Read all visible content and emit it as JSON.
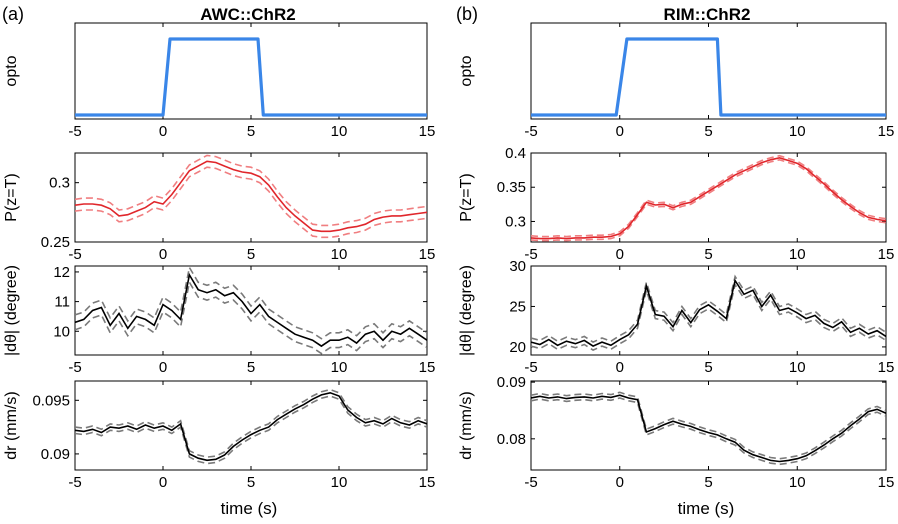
{
  "figure": {
    "panel_a_letter": "(a)",
    "panel_b_letter": "(b)",
    "panel_a_title": "AWC::ChR2",
    "panel_b_title": "RIM::ChR2",
    "xlabel": "time (s)"
  },
  "colors": {
    "opto": "#3a86e8",
    "ptz_mean": "#e0262b",
    "ptz_err": "#f07e80",
    "mean_black": "#000000",
    "err_gray": "#7a7a7a"
  },
  "chart_data": [
    {
      "id": "a-opto",
      "type": "line",
      "ylabel": "opto",
      "xlim": [
        -5,
        15
      ],
      "xticks": [
        -5,
        0,
        5,
        10,
        15
      ],
      "ylim": [
        0,
        1.2
      ],
      "yticks": [],
      "series": [
        {
          "x": [
            -5,
            0,
            0.4,
            5.4,
            5.7,
            15
          ],
          "y": [
            0.05,
            0.05,
            1.0,
            1.0,
            0.05,
            0.05
          ]
        }
      ]
    },
    {
      "id": "a-ptz",
      "type": "line",
      "ylabel": "P(z=T)",
      "xlim": [
        -5,
        15
      ],
      "xticks": [
        -5,
        0,
        5,
        10,
        15
      ],
      "ylim": [
        0.25,
        0.325
      ],
      "yticks": [
        0.25,
        0.3
      ],
      "ytick_labels": [
        "0.25",
        "0.3"
      ],
      "x": [
        -5,
        -4.5,
        -4,
        -3.5,
        -3,
        -2.5,
        -2,
        -1.5,
        -1,
        -0.5,
        0,
        0.5,
        1,
        1.5,
        2,
        2.5,
        3,
        3.5,
        4,
        4.5,
        5,
        5.5,
        6,
        6.5,
        7,
        7.5,
        8,
        8.5,
        9,
        9.5,
        10,
        10.5,
        11,
        11.5,
        12,
        12.5,
        13,
        13.5,
        14,
        14.5,
        15
      ],
      "mean": [
        0.281,
        0.282,
        0.282,
        0.281,
        0.278,
        0.272,
        0.273,
        0.276,
        0.279,
        0.284,
        0.282,
        0.29,
        0.3,
        0.31,
        0.314,
        0.318,
        0.317,
        0.314,
        0.311,
        0.309,
        0.308,
        0.305,
        0.298,
        0.288,
        0.279,
        0.272,
        0.266,
        0.26,
        0.259,
        0.259,
        0.26,
        0.262,
        0.263,
        0.265,
        0.269,
        0.271,
        0.272,
        0.272,
        0.273,
        0.274,
        0.275
      ],
      "err": 0.005
    },
    {
      "id": "a-dtheta",
      "type": "line",
      "ylabel": "|dθ| (degree)",
      "xlim": [
        -5,
        15
      ],
      "xticks": [
        -5,
        0,
        5,
        10,
        15
      ],
      "ylim": [
        9.2,
        12.2
      ],
      "yticks": [
        10,
        11,
        12
      ],
      "ytick_labels": [
        "10",
        "11",
        "12"
      ],
      "x": [
        -5,
        -4.5,
        -4,
        -3.5,
        -3,
        -2.5,
        -2,
        -1.5,
        -1,
        -0.5,
        0,
        0.5,
        1,
        1.5,
        2,
        2.5,
        3,
        3.5,
        4,
        4.5,
        5,
        5.5,
        6,
        6.5,
        7,
        7.5,
        8,
        8.5,
        9,
        9.5,
        10,
        10.5,
        11,
        11.5,
        12,
        12.5,
        13,
        13.5,
        14,
        14.5,
        15
      ],
      "mean": [
        10.3,
        10.4,
        10.7,
        10.8,
        10.2,
        10.6,
        10.1,
        10.5,
        10.4,
        10.2,
        10.9,
        10.7,
        10.4,
        11.9,
        11.4,
        11.3,
        11.4,
        11.2,
        11.3,
        11.0,
        10.6,
        10.9,
        10.5,
        10.3,
        10.1,
        9.9,
        9.8,
        9.7,
        9.5,
        9.7,
        9.7,
        9.8,
        9.6,
        9.9,
        10.0,
        9.7,
        10.0,
        9.9,
        10.1,
        9.9,
        9.7
      ],
      "err": 0.25
    },
    {
      "id": "a-dr",
      "type": "line",
      "ylabel": "dr (mm/s)",
      "xlim": [
        -5,
        15
      ],
      "xticks": [
        -5,
        0,
        5,
        10,
        15
      ],
      "xtick_labels": [
        "-5",
        "0",
        "5",
        "10",
        "15"
      ],
      "ylim": [
        0.0885,
        0.0968
      ],
      "yticks": [
        0.09,
        0.095
      ],
      "ytick_labels": [
        "0.09",
        "0.095"
      ],
      "x": [
        -5,
        -4.5,
        -4,
        -3.5,
        -3,
        -2.5,
        -2,
        -1.5,
        -1,
        -0.5,
        0,
        0.5,
        1,
        1.5,
        2,
        2.5,
        3,
        3.5,
        4,
        4.5,
        5,
        5.5,
        6,
        6.5,
        7,
        7.5,
        8,
        8.5,
        9,
        9.5,
        10,
        10.5,
        11,
        11.5,
        12,
        12.5,
        13,
        13.5,
        14,
        14.5,
        15
      ],
      "mean": [
        0.0922,
        0.0921,
        0.0923,
        0.092,
        0.0925,
        0.0924,
        0.0926,
        0.0923,
        0.0927,
        0.0924,
        0.0926,
        0.0922,
        0.0928,
        0.09,
        0.0896,
        0.0894,
        0.0895,
        0.0899,
        0.0907,
        0.0913,
        0.0918,
        0.0922,
        0.0925,
        0.0932,
        0.0937,
        0.0942,
        0.0946,
        0.0951,
        0.0955,
        0.0957,
        0.0954,
        0.0941,
        0.0934,
        0.0929,
        0.0931,
        0.0928,
        0.0933,
        0.0929,
        0.0927,
        0.0931,
        0.0928
      ],
      "err": 0.0003
    },
    {
      "id": "b-opto",
      "type": "line",
      "ylabel": "opto",
      "xlim": [
        -5,
        15
      ],
      "xticks": [
        -5,
        0,
        5,
        10,
        15
      ],
      "ylim": [
        0,
        1.2
      ],
      "yticks": [],
      "series": [
        {
          "x": [
            -5,
            -0.2,
            0.4,
            5.5,
            5.7,
            15
          ],
          "y": [
            0.05,
            0.05,
            1.0,
            1.0,
            0.05,
            0.05
          ]
        }
      ]
    },
    {
      "id": "b-ptz",
      "type": "line",
      "ylabel": "P(z=T)",
      "xlim": [
        -5,
        15
      ],
      "xticks": [
        -5,
        0,
        5,
        10,
        15
      ],
      "ylim": [
        0.27,
        0.4
      ],
      "yticks": [
        0.3,
        0.35,
        0.4
      ],
      "ytick_labels": [
        "0.3",
        "0.35",
        "0.4"
      ],
      "x": [
        -5,
        -4.5,
        -4,
        -3.5,
        -3,
        -2.5,
        -2,
        -1.5,
        -1,
        -0.5,
        0,
        0.5,
        1,
        1.5,
        2,
        2.5,
        3,
        3.5,
        4,
        4.5,
        5,
        5.5,
        6,
        6.5,
        7,
        7.5,
        8,
        8.5,
        9,
        9.5,
        10,
        10.5,
        11,
        11.5,
        12,
        12.5,
        13,
        13.5,
        14,
        14.5,
        15
      ],
      "mean": [
        0.276,
        0.275,
        0.275,
        0.276,
        0.275,
        0.276,
        0.276,
        0.277,
        0.277,
        0.278,
        0.282,
        0.293,
        0.31,
        0.328,
        0.324,
        0.325,
        0.32,
        0.325,
        0.328,
        0.336,
        0.344,
        0.352,
        0.36,
        0.368,
        0.374,
        0.38,
        0.386,
        0.39,
        0.393,
        0.389,
        0.385,
        0.377,
        0.366,
        0.355,
        0.343,
        0.332,
        0.322,
        0.313,
        0.306,
        0.303,
        0.301
      ],
      "err": 0.003
    },
    {
      "id": "b-dtheta",
      "type": "line",
      "ylabel": "|dθ| (degree)",
      "xlim": [
        -5,
        15
      ],
      "xticks": [
        -5,
        0,
        5,
        10,
        15
      ],
      "ylim": [
        19,
        30
      ],
      "yticks": [
        20,
        25,
        30
      ],
      "ytick_labels": [
        "20",
        "25",
        "30"
      ],
      "x": [
        -5,
        -4.5,
        -4,
        -3.5,
        -3,
        -2.5,
        -2,
        -1.5,
        -1,
        -0.5,
        0,
        0.5,
        1,
        1.5,
        2,
        2.5,
        3,
        3.5,
        4,
        4.5,
        5,
        5.5,
        6,
        6.5,
        7,
        7.5,
        8,
        8.5,
        9,
        9.5,
        10,
        10.5,
        11,
        11.5,
        12,
        12.5,
        13,
        13.5,
        14,
        14.5,
        15
      ],
      "mean": [
        20.6,
        20.3,
        20.9,
        20.2,
        20.7,
        20.4,
        20.8,
        20.1,
        20.6,
        20.2,
        20.9,
        21.5,
        22.8,
        27.5,
        24.0,
        23.8,
        22.5,
        24.5,
        23.0,
        24.6,
        25.2,
        24.4,
        23.5,
        28.2,
        26.5,
        27.0,
        25.0,
        26.4,
        24.5,
        24.8,
        24.2,
        23.5,
        23.9,
        22.9,
        22.4,
        23.1,
        21.8,
        22.3,
        21.6,
        22.0,
        21.3
      ],
      "err": 0.5
    },
    {
      "id": "b-dr",
      "type": "line",
      "ylabel": "dr (mm/s)",
      "xlim": [
        -5,
        15
      ],
      "xticks": [
        -5,
        0,
        5,
        10,
        15
      ],
      "xtick_labels": [
        "-5",
        "0",
        "5",
        "10",
        "15"
      ],
      "ylim": [
        0.0745,
        0.0902
      ],
      "yticks": [
        0.08,
        0.09
      ],
      "ytick_labels": [
        "0.08",
        "0.09"
      ],
      "x": [
        -5,
        -4.5,
        -4,
        -3.5,
        -3,
        -2.5,
        -2,
        -1.5,
        -1,
        -0.5,
        0,
        0.5,
        1,
        1.5,
        2,
        2.5,
        3,
        3.5,
        4,
        4.5,
        5,
        5.5,
        6,
        6.5,
        7,
        7.5,
        8,
        8.5,
        9,
        9.5,
        10,
        10.5,
        11,
        11.5,
        12,
        12.5,
        13,
        13.5,
        14,
        14.5,
        15
      ],
      "mean": [
        0.0872,
        0.0875,
        0.0872,
        0.0874,
        0.0871,
        0.0873,
        0.0874,
        0.0872,
        0.0875,
        0.0873,
        0.0877,
        0.0872,
        0.0869,
        0.0812,
        0.0818,
        0.0825,
        0.0831,
        0.0826,
        0.0822,
        0.0816,
        0.0811,
        0.0807,
        0.08,
        0.0794,
        0.078,
        0.0772,
        0.0767,
        0.0762,
        0.076,
        0.0762,
        0.0765,
        0.077,
        0.0779,
        0.0789,
        0.08,
        0.081,
        0.0823,
        0.0835,
        0.0848,
        0.0852,
        0.0845
      ],
      "err": 0.0005
    }
  ]
}
